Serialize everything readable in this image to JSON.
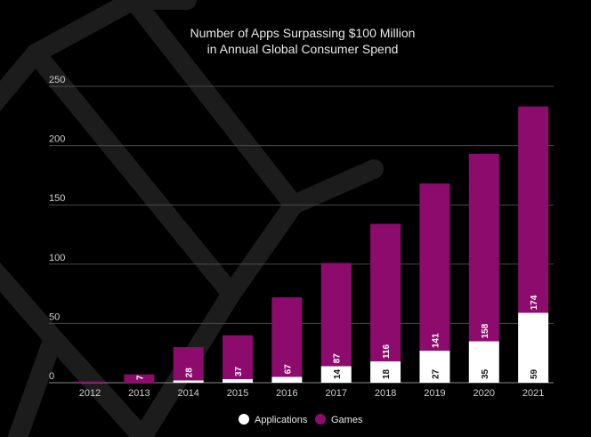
{
  "chart_data": {
    "type": "bar",
    "stacked": true,
    "title_lines": [
      "Number of Apps Surpassing $100 Million",
      "in Annual Global Consumer Spend"
    ],
    "categories": [
      "2012",
      "2013",
      "2014",
      "2015",
      "2016",
      "2017",
      "2018",
      "2019",
      "2020",
      "2021"
    ],
    "series": [
      {
        "name": "Applications",
        "color": "#ffffff",
        "values": [
          0,
          0,
          2,
          3,
          5,
          14,
          18,
          27,
          35,
          59
        ],
        "labels": [
          "",
          "",
          "",
          "",
          "",
          "14",
          "18",
          "27",
          "35",
          "59"
        ]
      },
      {
        "name": "Games",
        "color": "#8e0b6e",
        "values": [
          1,
          7,
          28,
          37,
          67,
          87,
          116,
          141,
          158,
          174
        ],
        "labels": [
          "",
          "7",
          "28",
          "37",
          "67",
          "87",
          "116",
          "141",
          "158",
          "174"
        ]
      }
    ],
    "ylim": [
      0,
      250
    ],
    "yticks": [
      0,
      50,
      100,
      150,
      200,
      250
    ],
    "grid": true,
    "legend": "bottom-center",
    "background": "#000000"
  }
}
